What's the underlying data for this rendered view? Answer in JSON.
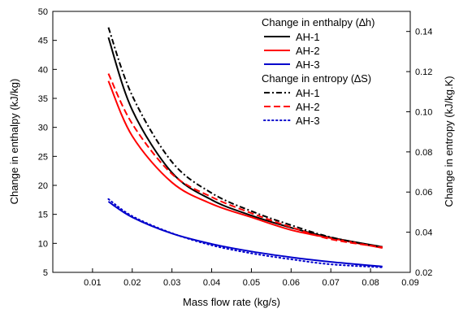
{
  "chart_data": {
    "type": "line",
    "xlabel": "Mass flow rate (kg/s)",
    "ylabel": "Change in enthalpy (kJ/kg)",
    "y2label": "Change in entropy (kJ/kg.K)",
    "xlim": [
      0.0,
      0.09
    ],
    "ylim": [
      5,
      50
    ],
    "y2lim": [
      0.02,
      0.15
    ],
    "x_ticks": [
      "0.01",
      "0.02",
      "0.03",
      "0.04",
      "0.05",
      "0.06",
      "0.07",
      "0.08",
      "0.09"
    ],
    "y_ticks": [
      "5",
      "10",
      "15",
      "20",
      "25",
      "30",
      "35",
      "40",
      "45",
      "50"
    ],
    "y2_ticks": [
      "0.02",
      "0.04",
      "0.06",
      "0.08",
      "0.10",
      "0.12",
      "0.14"
    ],
    "grid": false,
    "legend_position": "top-right",
    "legend_groups": [
      {
        "title": "Change in enthalpy (∆h)",
        "entries": [
          {
            "label": "AH-1",
            "color": "#000000",
            "style": "solid"
          },
          {
            "label": "AH-2",
            "color": "#ff0000",
            "style": "solid"
          },
          {
            "label": "AH-3",
            "color": "#0000cc",
            "style": "solid"
          }
        ]
      },
      {
        "title": "Change in entropy (∆S)",
        "entries": [
          {
            "label": "AH-1",
            "color": "#000000",
            "style": "dashdot"
          },
          {
            "label": "AH-2",
            "color": "#ff0000",
            "style": "dashed"
          },
          {
            "label": "AH-3",
            "color": "#0000cc",
            "style": "dotted"
          }
        ]
      }
    ],
    "series": [
      {
        "label": "AH-1",
        "quantity": "enthalpy",
        "axis": "left",
        "color": "#000000",
        "style": "solid",
        "x": [
          0.014,
          0.02,
          0.03,
          0.04,
          0.05,
          0.06,
          0.07,
          0.083
        ],
        "y": [
          45.5,
          33.0,
          22.2,
          17.5,
          14.8,
          12.7,
          11.0,
          9.4
        ]
      },
      {
        "label": "AH-2",
        "quantity": "enthalpy",
        "axis": "left",
        "color": "#ff0000",
        "style": "solid",
        "x": [
          0.014,
          0.02,
          0.03,
          0.04,
          0.05,
          0.06,
          0.07,
          0.083
        ],
        "y": [
          38.0,
          28.5,
          20.5,
          16.8,
          14.5,
          12.3,
          10.9,
          9.2
        ]
      },
      {
        "label": "AH-3",
        "quantity": "enthalpy",
        "axis": "left",
        "color": "#0000cc",
        "style": "solid",
        "x": [
          0.014,
          0.02,
          0.03,
          0.04,
          0.05,
          0.06,
          0.07,
          0.083
        ],
        "y": [
          17.2,
          14.5,
          11.7,
          9.9,
          8.6,
          7.6,
          6.8,
          6.0
        ]
      },
      {
        "label": "AH-1",
        "quantity": "entropy",
        "axis": "right",
        "color": "#000000",
        "style": "dashdot",
        "x": [
          0.014,
          0.02,
          0.03,
          0.04,
          0.05,
          0.06,
          0.07,
          0.083
        ],
        "y": [
          0.142,
          0.108,
          0.075,
          0.0595,
          0.0505,
          0.0435,
          0.0375,
          0.0325
        ]
      },
      {
        "label": "AH-2",
        "quantity": "entropy",
        "axis": "right",
        "color": "#ff0000",
        "style": "dashed",
        "x": [
          0.014,
          0.02,
          0.03,
          0.04,
          0.05,
          0.06,
          0.07,
          0.083
        ],
        "y": [
          0.119,
          0.094,
          0.069,
          0.0575,
          0.0495,
          0.0425,
          0.0365,
          0.0325
        ]
      },
      {
        "label": "AH-3",
        "quantity": "entropy",
        "axis": "right",
        "color": "#0000cc",
        "style": "dotted",
        "x": [
          0.014,
          0.02,
          0.03,
          0.04,
          0.05,
          0.06,
          0.07,
          0.083
        ],
        "y": [
          0.0565,
          0.048,
          0.0395,
          0.0335,
          0.0295,
          0.0265,
          0.024,
          0.0225
        ]
      }
    ]
  }
}
